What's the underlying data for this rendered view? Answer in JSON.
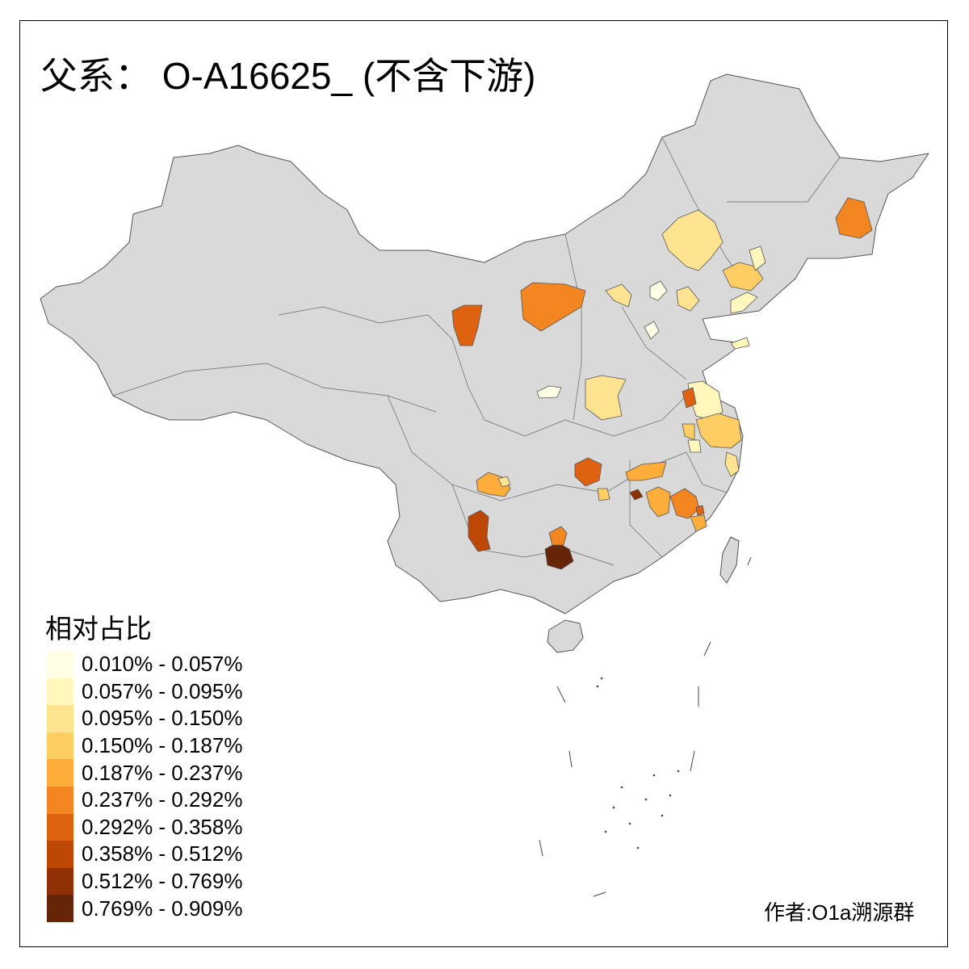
{
  "title": "父系： O-A16625_ (不含下游)",
  "legend": {
    "title": "相对占比",
    "bins": [
      {
        "label": "0.010% - 0.057%",
        "color": "#ffffe5"
      },
      {
        "label": "0.057% - 0.095%",
        "color": "#fff7bc"
      },
      {
        "label": "0.095% - 0.150%",
        "color": "#fee391"
      },
      {
        "label": "0.150% - 0.187%",
        "color": "#fece65"
      },
      {
        "label": "0.187% - 0.237%",
        "color": "#feac3a"
      },
      {
        "label": "0.237% - 0.292%",
        "color": "#f38621"
      },
      {
        "label": "0.292% - 0.358%",
        "color": "#de6210"
      },
      {
        "label": "0.358% - 0.512%",
        "color": "#bd4805"
      },
      {
        "label": "0.512% - 0.769%",
        "color": "#8f3104"
      },
      {
        "label": "0.769% - 0.909%",
        "color": "#662506"
      }
    ]
  },
  "map": {
    "base_color": "#d9d9d9",
    "border_color": "#555555",
    "region_bins": [
      2,
      5,
      5,
      6,
      3,
      1,
      0,
      2,
      1,
      2,
      0,
      1,
      2,
      0,
      1,
      3,
      6,
      2,
      3,
      1,
      4,
      6,
      4,
      3,
      4,
      5,
      8,
      4,
      7,
      9,
      5,
      6,
      2
    ]
  },
  "author": "作者:O1a溯源群"
}
